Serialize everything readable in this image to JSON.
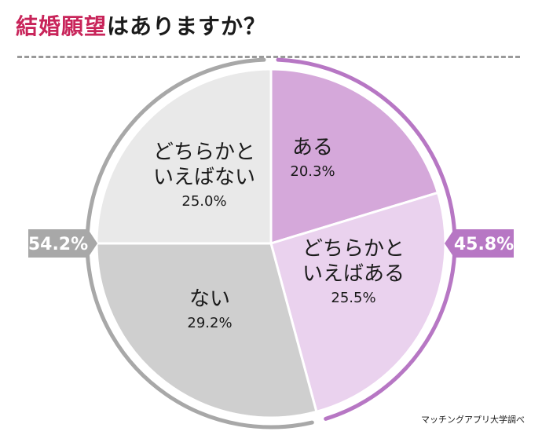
{
  "title": {
    "accent": "結婚願望",
    "rest": "はありますか？"
  },
  "chart_data": {
    "type": "pie",
    "slices": [
      {
        "label_lines": [
          "ある"
        ],
        "value": 20.3,
        "value_label": "20.3%",
        "color": "#d5a8da"
      },
      {
        "label_lines": [
          "どちらかと",
          "いえばある"
        ],
        "value": 25.5,
        "value_label": "25.5%",
        "color": "#ead2ee"
      },
      {
        "label_lines": [
          "ない"
        ],
        "value": 29.2,
        "value_label": "29.2%",
        "color": "#cfcfcf"
      },
      {
        "label_lines": [
          "どちらかと",
          "いえばない"
        ],
        "value": 25.0,
        "value_label": "25.0%",
        "color": "#e9e9e9"
      }
    ],
    "groups": [
      {
        "total_label": "45.8%",
        "side": "right",
        "color": "#b777c4"
      },
      {
        "total_label": "54.2%",
        "side": "left",
        "color": "#a8a8a8"
      }
    ]
  },
  "source": "マッチングアプリ大学調べ"
}
